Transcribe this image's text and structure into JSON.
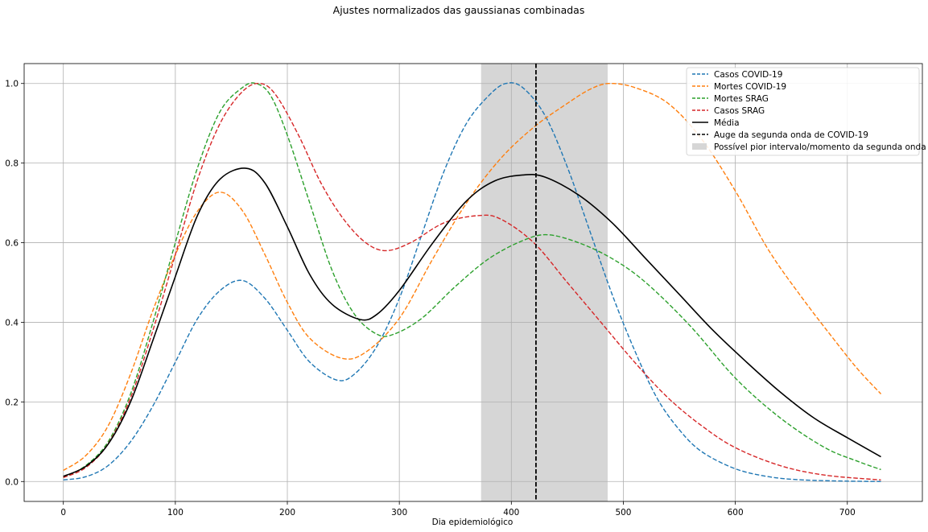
{
  "chart_data": {
    "type": "line",
    "title": "Ajustes normalizados das gaussianas combinadas",
    "xlabel": "Dia epidemiológico",
    "ylabel": "",
    "xlim": [
      -35,
      767
    ],
    "ylim": [
      -0.05,
      1.05
    ],
    "x_ticks": [
      0,
      100,
      200,
      300,
      400,
      500,
      600,
      700
    ],
    "y_ticks": [
      0.0,
      0.2,
      0.4,
      0.6,
      0.8,
      1.0
    ],
    "x_tick_labels": [
      "0",
      "100",
      "200",
      "300",
      "400",
      "500",
      "600",
      "700"
    ],
    "y_tick_labels": [
      "0.0",
      "0.2",
      "0.4",
      "0.6",
      "0.8",
      "1.0"
    ],
    "grid": true,
    "legend_position": "top-right",
    "x_range": [
      0,
      730
    ],
    "series": [
      {
        "name": "Casos COVID-19",
        "color": "#1f77b4",
        "dash": true,
        "points": [
          [
            0,
            0.004
          ],
          [
            20,
            0.012
          ],
          [
            40,
            0.04
          ],
          [
            60,
            0.1
          ],
          [
            80,
            0.19
          ],
          [
            100,
            0.3
          ],
          [
            120,
            0.41
          ],
          [
            140,
            0.48
          ],
          [
            160,
            0.505
          ],
          [
            180,
            0.46
          ],
          [
            200,
            0.38
          ],
          [
            220,
            0.3
          ],
          [
            244,
            0.255
          ],
          [
            260,
            0.27
          ],
          [
            280,
            0.34
          ],
          [
            300,
            0.46
          ],
          [
            320,
            0.62
          ],
          [
            340,
            0.78
          ],
          [
            360,
            0.9
          ],
          [
            380,
            0.97
          ],
          [
            395,
            1.0
          ],
          [
            410,
            0.99
          ],
          [
            430,
            0.92
          ],
          [
            450,
            0.79
          ],
          [
            470,
            0.63
          ],
          [
            490,
            0.47
          ],
          [
            510,
            0.33
          ],
          [
            530,
            0.21
          ],
          [
            550,
            0.13
          ],
          [
            570,
            0.075
          ],
          [
            600,
            0.032
          ],
          [
            630,
            0.012
          ],
          [
            660,
            0.004
          ],
          [
            700,
            0.001
          ],
          [
            730,
            0.0
          ]
        ]
      },
      {
        "name": "Mortes COVID-19",
        "color": "#ff7f0e",
        "dash": true,
        "points": [
          [
            0,
            0.028
          ],
          [
            20,
            0.065
          ],
          [
            40,
            0.14
          ],
          [
            60,
            0.27
          ],
          [
            80,
            0.43
          ],
          [
            100,
            0.57
          ],
          [
            120,
            0.68
          ],
          [
            140,
            0.727
          ],
          [
            160,
            0.68
          ],
          [
            180,
            0.57
          ],
          [
            200,
            0.45
          ],
          [
            220,
            0.36
          ],
          [
            248,
            0.31
          ],
          [
            270,
            0.325
          ],
          [
            300,
            0.41
          ],
          [
            330,
            0.56
          ],
          [
            360,
            0.7
          ],
          [
            390,
            0.81
          ],
          [
            420,
            0.89
          ],
          [
            450,
            0.95
          ],
          [
            470,
            0.985
          ],
          [
            487,
            1.0
          ],
          [
            510,
            0.99
          ],
          [
            540,
            0.95
          ],
          [
            570,
            0.86
          ],
          [
            600,
            0.73
          ],
          [
            630,
            0.58
          ],
          [
            660,
            0.46
          ],
          [
            690,
            0.35
          ],
          [
            710,
            0.28
          ],
          [
            730,
            0.22
          ]
        ]
      },
      {
        "name": "Mortes SRAG",
        "color": "#2ca02c",
        "dash": true,
        "points": [
          [
            0,
            0.01
          ],
          [
            20,
            0.04
          ],
          [
            40,
            0.1
          ],
          [
            60,
            0.22
          ],
          [
            80,
            0.4
          ],
          [
            100,
            0.6
          ],
          [
            120,
            0.79
          ],
          [
            140,
            0.93
          ],
          [
            160,
            0.99
          ],
          [
            172,
            1.0
          ],
          [
            185,
            0.97
          ],
          [
            200,
            0.87
          ],
          [
            220,
            0.7
          ],
          [
            240,
            0.53
          ],
          [
            260,
            0.42
          ],
          [
            280,
            0.37
          ],
          [
            295,
            0.37
          ],
          [
            320,
            0.41
          ],
          [
            350,
            0.49
          ],
          [
            380,
            0.56
          ],
          [
            410,
            0.605
          ],
          [
            432,
            0.62
          ],
          [
            460,
            0.6
          ],
          [
            490,
            0.56
          ],
          [
            520,
            0.5
          ],
          [
            560,
            0.39
          ],
          [
            600,
            0.26
          ],
          [
            640,
            0.16
          ],
          [
            680,
            0.085
          ],
          [
            710,
            0.05
          ],
          [
            730,
            0.03
          ]
        ]
      },
      {
        "name": "Casos SRAG",
        "color": "#d62728",
        "dash": true,
        "points": [
          [
            0,
            0.01
          ],
          [
            20,
            0.035
          ],
          [
            40,
            0.095
          ],
          [
            60,
            0.21
          ],
          [
            80,
            0.38
          ],
          [
            100,
            0.57
          ],
          [
            120,
            0.76
          ],
          [
            140,
            0.9
          ],
          [
            160,
            0.98
          ],
          [
            176,
            1.0
          ],
          [
            190,
            0.97
          ],
          [
            210,
            0.87
          ],
          [
            230,
            0.75
          ],
          [
            250,
            0.66
          ],
          [
            270,
            0.6
          ],
          [
            288,
            0.58
          ],
          [
            310,
            0.6
          ],
          [
            340,
            0.65
          ],
          [
            370,
            0.668
          ],
          [
            390,
            0.66
          ],
          [
            420,
            0.6
          ],
          [
            450,
            0.5
          ],
          [
            480,
            0.4
          ],
          [
            510,
            0.3
          ],
          [
            540,
            0.21
          ],
          [
            570,
            0.14
          ],
          [
            600,
            0.085
          ],
          [
            640,
            0.04
          ],
          [
            680,
            0.016
          ],
          [
            730,
            0.004
          ]
        ]
      },
      {
        "name": "Média",
        "color": "#000000",
        "dash": false,
        "points": [
          [
            0,
            0.013
          ],
          [
            20,
            0.038
          ],
          [
            40,
            0.094
          ],
          [
            60,
            0.2
          ],
          [
            80,
            0.355
          ],
          [
            100,
            0.515
          ],
          [
            120,
            0.67
          ],
          [
            140,
            0.76
          ],
          [
            163,
            0.787
          ],
          [
            180,
            0.75
          ],
          [
            200,
            0.64
          ],
          [
            220,
            0.52
          ],
          [
            240,
            0.445
          ],
          [
            265,
            0.407
          ],
          [
            280,
            0.42
          ],
          [
            300,
            0.48
          ],
          [
            330,
            0.6
          ],
          [
            360,
            0.705
          ],
          [
            385,
            0.755
          ],
          [
            410,
            0.77
          ],
          [
            430,
            0.765
          ],
          [
            460,
            0.72
          ],
          [
            490,
            0.65
          ],
          [
            520,
            0.56
          ],
          [
            550,
            0.47
          ],
          [
            580,
            0.38
          ],
          [
            610,
            0.3
          ],
          [
            640,
            0.225
          ],
          [
            670,
            0.16
          ],
          [
            700,
            0.11
          ],
          [
            730,
            0.062
          ]
        ]
      }
    ],
    "annotations": {
      "vline": {
        "label": "Auge da segunda onda de COVID-19",
        "x": 422,
        "color": "#000000"
      },
      "span": {
        "label": "Possível pior intervalo/momento da segunda onda",
        "x0": 373,
        "x1": 486,
        "color": "#d6d6d6"
      }
    }
  }
}
